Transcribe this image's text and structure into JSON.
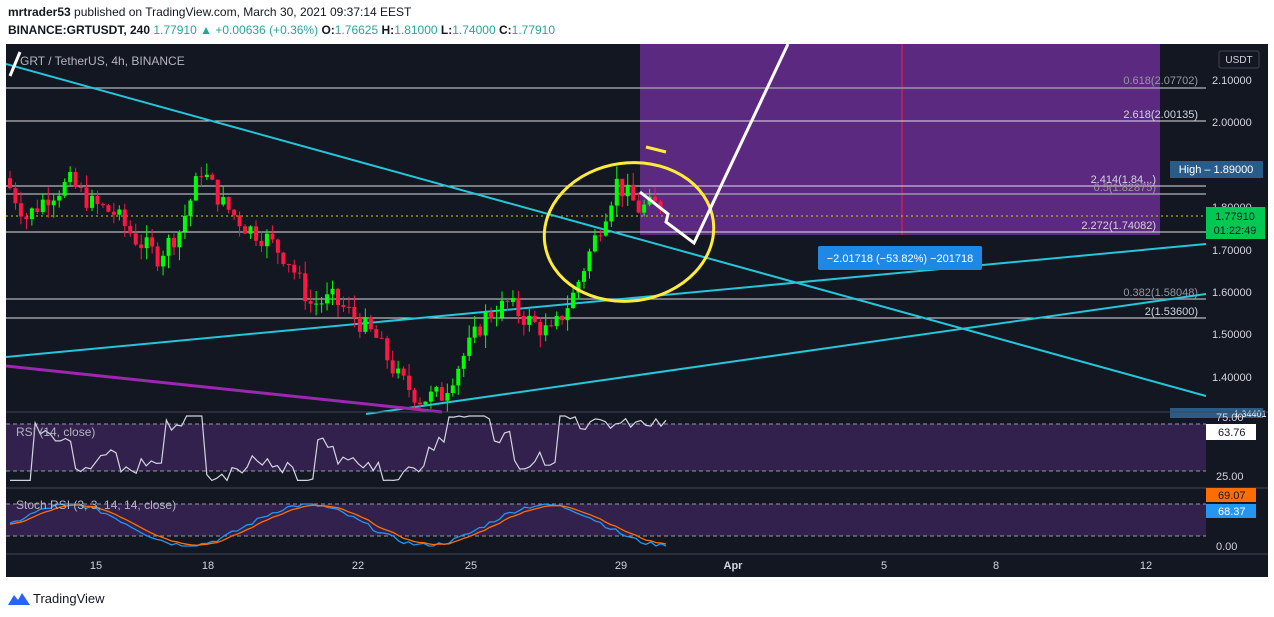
{
  "header": {
    "user": "mrtrader53",
    "published_text": "published on TradingView.com, March 30, 2021 09:37:14 EEST",
    "symbol": "BINANCE:GRTUSDT, 240",
    "last": "1.77910",
    "arrow": "▲",
    "change": "+0.00636 (+0.36%)",
    "open_label": "O:",
    "open": "1.76625",
    "high_label": "H:",
    "high": "1.81000",
    "low_label": "L:",
    "low": "1.74000",
    "close_label": "C:",
    "close": "1.77910"
  },
  "chart_title": "GRT / TetherUS, 4h, BINANCE",
  "currency": "USDT",
  "price_axis": {
    "ticks": [
      "2.10000",
      "2.00000",
      "1.90000",
      "1.80000",
      "1.70000",
      "1.60000",
      "1.50000",
      "1.40000"
    ],
    "high_tag": "High  –  1.89000",
    "last_tag": "1.77910",
    "countdown": "01:22:49",
    "bottom_tag": "1.34401"
  },
  "fib_labels": [
    "0.618(2.07702)",
    "2.618(2.00135)",
    "2.414(1.84...)",
    "0.5(1.82875)",
    "2.272(1.74082)",
    "0.382(1.58048)",
    "2(1.53600)"
  ],
  "measure_label": "−2.01718 (−53.82%) −201718",
  "rsi": {
    "title": "RSI (14, close)",
    "value": "63.76",
    "ticks": [
      "75.00",
      "25.00"
    ]
  },
  "stoch": {
    "title": "Stoch RSI (3, 3, 14, 14, close)",
    "k_value": "69.07",
    "d_value": "68.37",
    "ticks": [
      "0.00"
    ]
  },
  "time_axis": [
    "15",
    "18",
    "22",
    "25",
    "29",
    "Apr",
    "5",
    "8",
    "12"
  ],
  "footer": {
    "brand": "TradingView"
  },
  "colors": {
    "background": "#131722",
    "up": "#00ff00",
    "down": "#ff1744",
    "trendline": "#26c6da",
    "purple_zone": "#6a2d91",
    "rsi_line": "#d1d4dc",
    "stoch_k": "#2196f3",
    "stoch_d": "#ff6d00",
    "highlight": "#ffeb3b"
  },
  "chart_data": {
    "type": "candlestick",
    "title": "GRT / TetherUS, 4h, BINANCE",
    "y_range": [
      1.3,
      2.15
    ],
    "x_labels": [
      "15",
      "18",
      "22",
      "25",
      "29",
      "Apr",
      "5",
      "8",
      "12"
    ],
    "closes_estimate": [
      1.84,
      1.75,
      1.8,
      1.83,
      1.78,
      1.76,
      1.7,
      1.66,
      1.72,
      1.86,
      1.78,
      1.73,
      1.7,
      1.65,
      1.55,
      1.56,
      1.52,
      1.47,
      1.38,
      1.33,
      1.34,
      1.43,
      1.52,
      1.55,
      1.51,
      1.48,
      1.57,
      1.7,
      1.83,
      1.77,
      1.78
    ],
    "last_price": 1.7791,
    "high": 1.89,
    "rsi_last": 63.76,
    "stoch_k_last": 69.07,
    "stoch_d_last": 68.37
  }
}
